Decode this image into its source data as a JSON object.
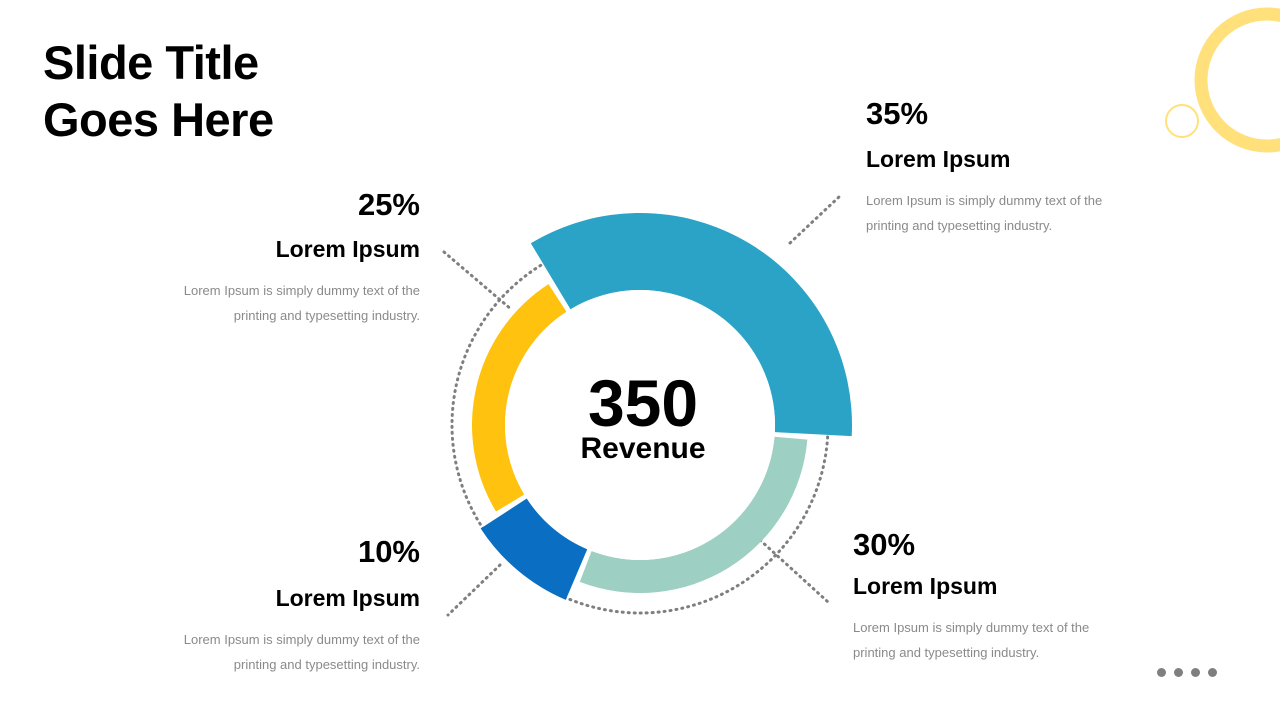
{
  "slide": {
    "title_line1": "Slide Title",
    "title_line2": "Goes Here"
  },
  "chart_data": {
    "type": "pie",
    "center_value": "350",
    "center_label": "Revenue",
    "segments": [
      {
        "label": "Lorem Ipsum",
        "value": 35,
        "percent_label": "35%",
        "color": "#2BA3C6",
        "description": "Lorem Ipsum is simply dummy text of the printing and typesetting industry."
      },
      {
        "label": "Lorem Ipsum",
        "value": 30,
        "percent_label": "30%",
        "color": "#9ECFC3",
        "description": "Lorem Ipsum is simply dummy text of the printing and typesetting industry."
      },
      {
        "label": "Lorem Ipsum",
        "value": 10,
        "percent_label": "10%",
        "color": "#0A6FC2",
        "description": "Lorem Ipsum is simply dummy text of the printing and typesetting industry."
      },
      {
        "label": "Lorem Ipsum",
        "value": 25,
        "percent_label": "25%",
        "color": "#FFC20E",
        "description": "Lorem Ipsum is simply dummy text of the printing and typesetting industry."
      }
    ]
  },
  "blocks": [
    {
      "percent": "35%",
      "heading": "Lorem Ipsum",
      "desc_line1": "Lorem Ipsum is simply dummy text of the",
      "desc_line2": "printing and typesetting industry."
    },
    {
      "percent": "30%",
      "heading": "Lorem Ipsum",
      "desc_line1": "Lorem Ipsum is simply dummy text of the",
      "desc_line2": "printing and typesetting industry."
    },
    {
      "percent": "10%",
      "heading": "Lorem Ipsum",
      "desc_line1": "Lorem Ipsum is simply dummy text of the",
      "desc_line2": "printing and typesetting industry."
    },
    {
      "percent": "25%",
      "heading": "Lorem Ipsum",
      "desc_line1": "Lorem Ipsum is simply dummy text of the",
      "desc_line2": "printing and typesetting industry."
    }
  ],
  "colors": {
    "decor_ring": "#FFE07A",
    "dotted_line": "#7f7f7f",
    "pager_dot": "#7f7f7f"
  }
}
